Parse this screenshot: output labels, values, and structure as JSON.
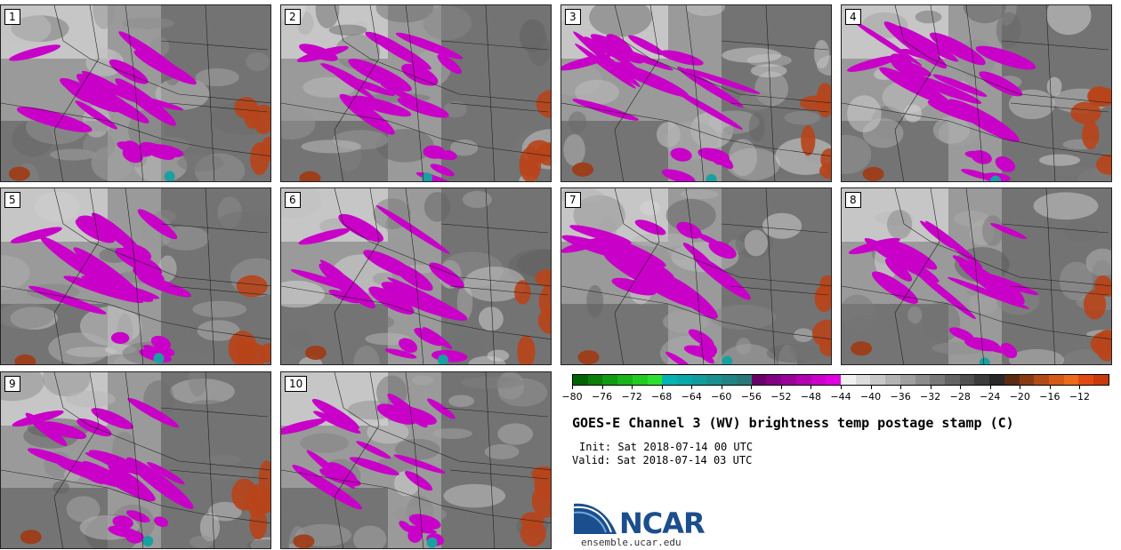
{
  "panels": [
    {
      "label": "1"
    },
    {
      "label": "2"
    },
    {
      "label": "3"
    },
    {
      "label": "4"
    },
    {
      "label": "5"
    },
    {
      "label": "6"
    },
    {
      "label": "7"
    },
    {
      "label": "8"
    },
    {
      "label": "9"
    },
    {
      "label": "10"
    }
  ],
  "colorbar": {
    "colors": [
      "#006400",
      "#0a7f0a",
      "#109b10",
      "#18b418",
      "#20cc20",
      "#2ee02e",
      "#00b4b4",
      "#08a8a8",
      "#109c9c",
      "#189090",
      "#208484",
      "#287878",
      "#6a006a",
      "#820082",
      "#9a009a",
      "#b200b2",
      "#ca00ca",
      "#e000e0",
      "#f0f0f0",
      "#dcdcdc",
      "#c8c8c8",
      "#b4b4b4",
      "#a0a0a0",
      "#8c8c8c",
      "#787878",
      "#646464",
      "#505050",
      "#3c3c3c",
      "#282828",
      "#5c2a10",
      "#8a3a12",
      "#b44a14",
      "#d45a16",
      "#ec6a18",
      "#e04a10",
      "#c83a0c"
    ],
    "tick_labels": [
      "−80",
      "−76",
      "−72",
      "−68",
      "−64",
      "−60",
      "−56",
      "−52",
      "−48",
      "−44",
      "−40",
      "−36",
      "−32",
      "−28",
      "−24",
      "−20",
      "−16",
      "−12"
    ]
  },
  "title": "GOES-E Channel 3 (WV) brightness temp postage stamp (C)",
  "init": "Init: Sat 2018-07-14 00 UTC",
  "valid": "Valid: Sat 2018-07-14 03 UTC",
  "logo": {
    "name": "NCAR",
    "url": "ensemble.ucar.edu"
  }
}
